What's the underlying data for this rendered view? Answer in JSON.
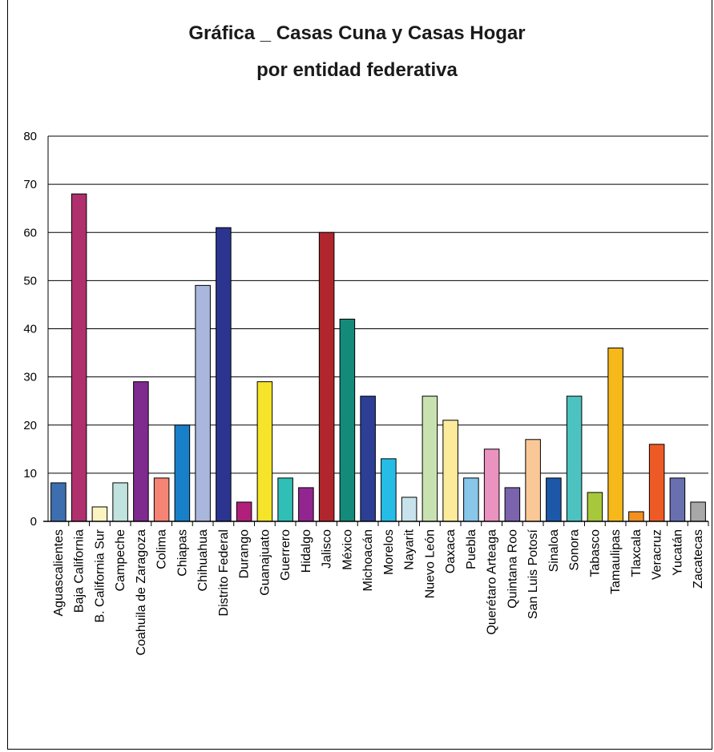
{
  "chart_data": {
    "type": "bar",
    "title": "Gráfica _ Casas Cuna y Casas Hogar",
    "subtitle": "por entidad federativa",
    "ylim": [
      0,
      80
    ],
    "yticks": [
      "0",
      "10",
      "20",
      "30",
      "40",
      "50",
      "60",
      "70",
      "80"
    ],
    "grid": true,
    "categories": [
      "Aguascalientes",
      "Baja California",
      "B. California Sur",
      "Campeche",
      "Coahuila de Zaragoza",
      "Colima",
      "Chiapas",
      "Chihuahua",
      "Distrito Federal",
      "Durango",
      "Guanajuato",
      "Guerrero",
      "Hidalgo",
      "Jalisco",
      "México",
      "Michoacán",
      "Morelos",
      "Nayarit",
      "Nuevo León",
      "Oaxaca",
      "Puebla",
      "Querétaro Arteaga",
      "Quintana Roo",
      "San Luis Potosí",
      "Sinaloa",
      "Sonora",
      "Tabasco",
      "Tamaulipas",
      "Tlaxcala",
      "Veracruz",
      "Yucatán",
      "Zacatecas"
    ],
    "values": [
      8,
      68,
      3,
      8,
      29,
      9,
      20,
      49,
      61,
      4,
      29,
      9,
      7,
      60,
      42,
      26,
      13,
      5,
      26,
      21,
      9,
      15,
      7,
      17,
      9,
      26,
      6,
      36,
      2,
      16,
      9,
      4
    ],
    "colors": [
      "#3d6fb0",
      "#b0306e",
      "#fbf4c0",
      "#c0e3e0",
      "#7e2a8e",
      "#f58475",
      "#1880c8",
      "#a9b7dd",
      "#2b3590",
      "#b0207b",
      "#f5e42a",
      "#30bfb6",
      "#922590",
      "#b0262c",
      "#148a7a",
      "#2d3e95",
      "#25bde8",
      "#c7e2ea",
      "#c7e2b0",
      "#fdeb9c",
      "#88c6ea",
      "#ea92c0",
      "#7b63ad",
      "#fac896",
      "#1d58a8",
      "#4cc3c0",
      "#a8c83c",
      "#f7b81a",
      "#f29020",
      "#ee5a25",
      "#6870b0",
      "#a8a8a8"
    ]
  }
}
